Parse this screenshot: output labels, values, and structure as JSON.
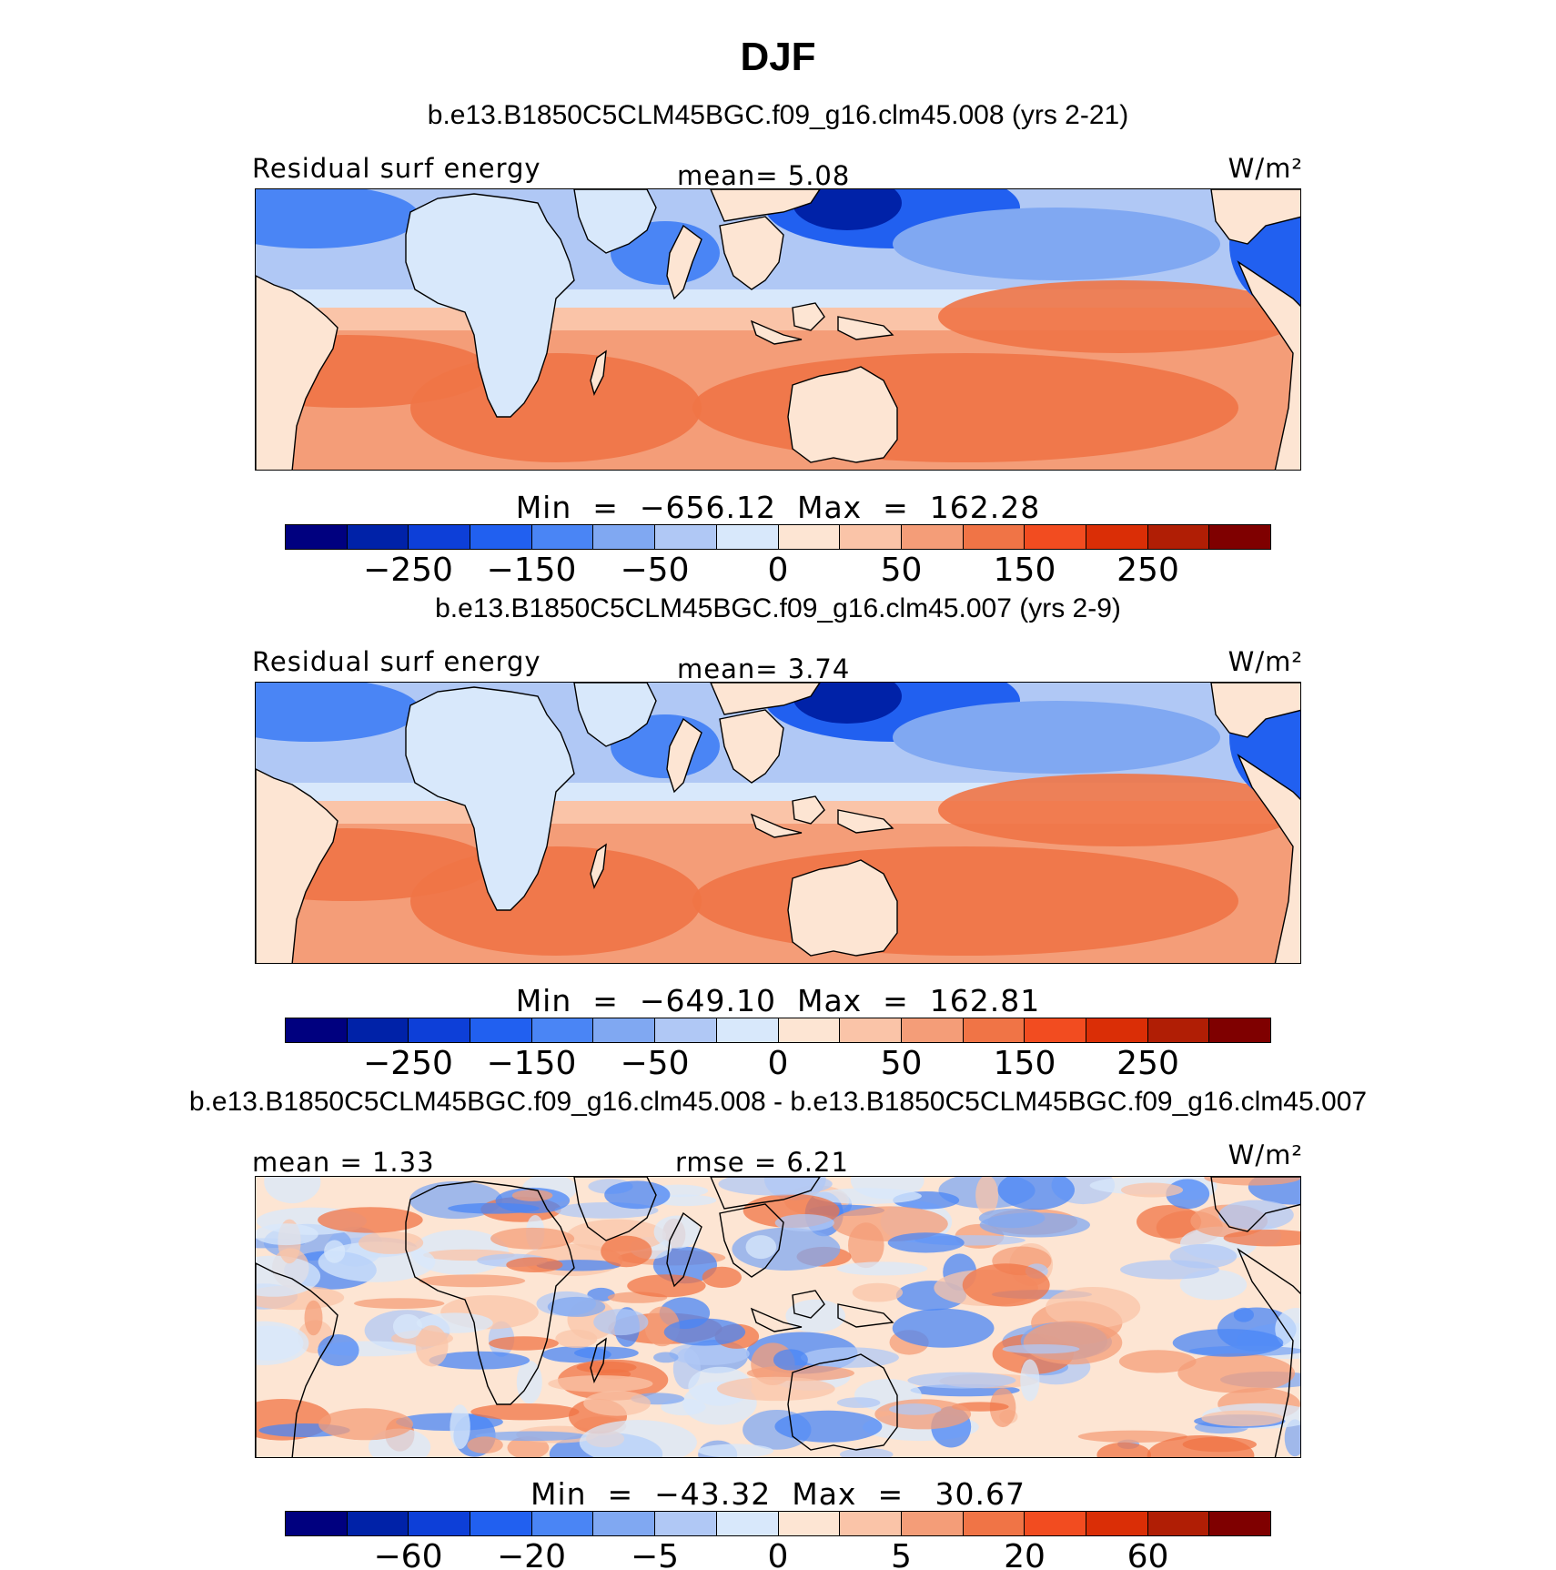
{
  "figure": {
    "title": "DJF"
  },
  "panels": [
    {
      "case_title": "b.e13.B1850C5CLM45BGC.f09_g16.clm45.008 (yrs 2-21)",
      "variable": "Residual surf energy",
      "stat1": "mean=    5.08",
      "stat2": "",
      "units": "W/m²",
      "min_max": "Min  =  −656.12  Max  =  162.28",
      "colorbar_ticks": [
        "−250",
        "−150",
        "−50",
        "0",
        "50",
        "150",
        "250"
      ]
    },
    {
      "case_title": "b.e13.B1850C5CLM45BGC.f09_g16.clm45.007 (yrs 2-9)",
      "variable": "Residual surf energy",
      "stat1": "mean=    3.74",
      "stat2": "",
      "units": "W/m²",
      "min_max": "Min  =  −649.10  Max  =  162.81",
      "colorbar_ticks": [
        "−250",
        "−150",
        "−50",
        "0",
        "50",
        "150",
        "250"
      ]
    },
    {
      "case_title": "b.e13.B1850C5CLM45BGC.f09_g16.clm45.008 - b.e13.B1850C5CLM45BGC.f09_g16.clm45.007",
      "variable": "mean =    1.33",
      "stat1": "rmse =    6.21",
      "stat2": "",
      "units": "W/m²",
      "min_max": "Min  =  −43.32  Max  =   30.67",
      "colorbar_ticks": [
        "−60",
        "−20",
        "−5",
        "0",
        "5",
        "20",
        "60"
      ]
    }
  ],
  "colorbar_colors": [
    "#00007f",
    "#0022a8",
    "#0d3fd8",
    "#2160f0",
    "#4a85f5",
    "#80a8f2",
    "#b0c8f5",
    "#d8e8fb",
    "#fde5d3",
    "#fac4a8",
    "#f49d78",
    "#f07446",
    "#f24c20",
    "#da2e06",
    "#b01e05",
    "#7f0000"
  ],
  "map_style": {
    "land_fill": "#ffffff",
    "coastline": "#000000"
  }
}
